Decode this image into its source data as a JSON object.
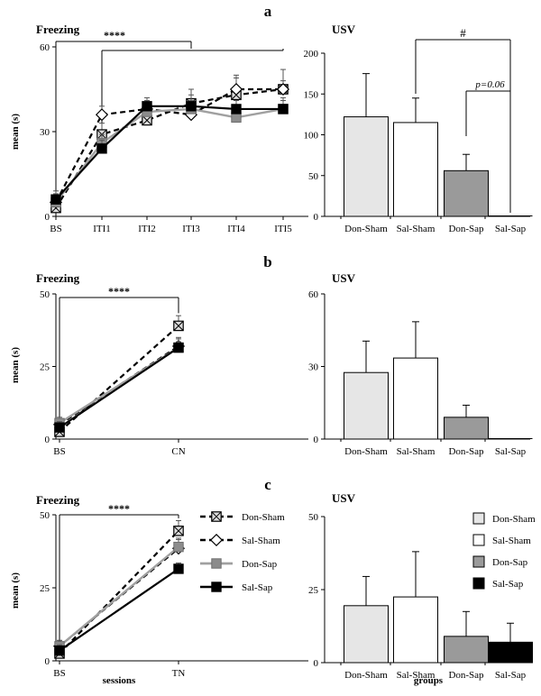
{
  "panels": [
    {
      "letter": "a",
      "freezing": {
        "type": "line",
        "title": "Freezing",
        "ylabel": "mean (s)",
        "xlabel": "",
        "categories": [
          "BS",
          "ITI1",
          "ITI2",
          "ITI3",
          "ITI4",
          "ITI5"
        ],
        "ylim": [
          0,
          60
        ],
        "yticks": [
          0,
          30,
          60
        ],
        "series": [
          {
            "name": "Don-Sham",
            "values": [
              3,
              29,
              34,
              40,
              43,
              45
            ],
            "errors": [
              2,
              4,
              3,
              5,
              6,
              7
            ]
          },
          {
            "name": "Sal-Sham",
            "values": [
              5,
              36,
              38,
              36,
              45,
              45
            ],
            "errors": [
              3,
              3,
              3,
              4,
              5,
              3
            ]
          },
          {
            "name": "Don-Sap",
            "values": [
              5,
              26,
              37,
              38,
              35,
              38
            ],
            "errors": [
              2,
              3,
              3,
              3,
              3,
              3
            ]
          },
          {
            "name": "Sal-Sap",
            "values": [
              6,
              24,
              39,
              39,
              38,
              38
            ],
            "errors": [
              3,
              3,
              3,
              4,
              3,
              4
            ]
          }
        ],
        "annotations": [
          {
            "text": "****",
            "from": "BS",
            "to": "ITI3",
            "y": 62
          },
          {
            "text": "",
            "from": "ITI1",
            "to": "ITI5",
            "y": 56
          }
        ]
      },
      "usv": {
        "type": "bar",
        "title": "USV",
        "xlabel": "",
        "categories": [
          "Don-Sham",
          "Sal-Sham",
          "Don-Sap",
          "Sal-Sap"
        ],
        "values": [
          122,
          115,
          56,
          0
        ],
        "errors": [
          53,
          30,
          20,
          0
        ],
        "ylim": [
          0,
          200
        ],
        "yticks": [
          0,
          50,
          100,
          150,
          200
        ],
        "annotations": [
          {
            "text": "#",
            "from": "Sal-Sham",
            "to": "Sal-Sap",
            "y": 210
          },
          {
            "text": "p=0.06",
            "from": "Don-Sap",
            "to": "Sal-Sap",
            "y": 150
          }
        ]
      }
    },
    {
      "letter": "b",
      "freezing": {
        "type": "line",
        "title": "Freezing",
        "ylabel": "mean (s)",
        "xlabel": "",
        "categories": [
          "BS",
          "CN"
        ],
        "ylim": [
          0,
          50
        ],
        "yticks": [
          0,
          25,
          50
        ],
        "series": [
          {
            "name": "Don-Sham",
            "values": [
              2.5,
              39
            ],
            "errors": [
              2,
              3.5
            ]
          },
          {
            "name": "Sal-Sham",
            "values": [
              5,
              32
            ],
            "errors": [
              2,
              3
            ]
          },
          {
            "name": "Don-Sap",
            "values": [
              5.5,
              31.5
            ],
            "errors": [
              2,
              3
            ]
          },
          {
            "name": "Sal-Sap",
            "values": [
              4,
              31.5
            ],
            "errors": [
              2,
              2
            ]
          }
        ],
        "annotations": [
          {
            "text": "****",
            "from": "BS",
            "to": "CN",
            "y": 46
          }
        ]
      },
      "usv": {
        "type": "bar",
        "title": "USV",
        "xlabel": "",
        "categories": [
          "Don-Sham",
          "Sal-Sham",
          "Don-Sap",
          "Sal-Sap"
        ],
        "values": [
          27.5,
          33.5,
          9,
          0
        ],
        "errors": [
          13,
          15,
          5,
          0
        ],
        "ylim": [
          0,
          60
        ],
        "yticks": [
          0,
          30,
          60
        ],
        "annotations": []
      }
    },
    {
      "letter": "c",
      "freezing": {
        "type": "line",
        "title": "Freezing",
        "ylabel": "mean (s)",
        "xlabel": "sessions",
        "categories": [
          "BS",
          "TN"
        ],
        "ylim": [
          0,
          50
        ],
        "yticks": [
          0,
          25,
          50
        ],
        "series": [
          {
            "name": "Don-Sham",
            "values": [
              2.5,
              44.5
            ],
            "errors": [
              2,
              3.5
            ]
          },
          {
            "name": "Sal-Sham",
            "values": [
              5,
              38.5
            ],
            "errors": [
              2,
              3
            ]
          },
          {
            "name": "Don-Sap",
            "values": [
              5,
              39
            ],
            "errors": [
              2,
              3
            ]
          },
          {
            "name": "Sal-Sap",
            "values": [
              3.5,
              31.5
            ],
            "errors": [
              2,
              2
            ]
          }
        ],
        "annotations": [
          {
            "text": "****",
            "from": "BS",
            "to": "TN",
            "y": 48
          }
        ],
        "legend": [
          "Don-Sham",
          "Sal-Sham",
          "Don-Sap",
          "Sal-Sap"
        ]
      },
      "usv": {
        "type": "bar",
        "title": "USV",
        "xlabel": "groups",
        "categories": [
          "Don-Sham",
          "Sal-Sham",
          "Don-Sap",
          "Sal-Sap"
        ],
        "values": [
          19.5,
          22.5,
          9,
          7
        ],
        "errors": [
          10,
          15.5,
          8.5,
          6.5
        ],
        "ylim": [
          0,
          50
        ],
        "yticks": [
          0,
          25,
          50
        ],
        "annotations": [],
        "legend": [
          "Don-Sham",
          "Sal-Sham",
          "Don-Sap",
          "Sal-Sap"
        ]
      }
    }
  ],
  "styles": {
    "Don-Sham": {
      "stroke": "#000000",
      "dash": "6,4",
      "marker": "boxx",
      "fill": "#dcdcdc",
      "barfill": "#e6e6e6",
      "width": 2.2
    },
    "Sal-Sham": {
      "stroke": "#000000",
      "dash": "6,4",
      "marker": "diamond",
      "fill": "#ffffff",
      "barfill": "#ffffff",
      "width": 2.2
    },
    "Don-Sap": {
      "stroke": "#a0a0a0",
      "dash": "",
      "marker": "square",
      "fill": "#8c8c8c",
      "barfill": "#9a9a9a",
      "width": 2.4
    },
    "Sal-Sap": {
      "stroke": "#000000",
      "dash": "",
      "marker": "fsquare",
      "fill": "#000000",
      "barfill": "#000000",
      "width": 2.2
    }
  },
  "chart_data": [
    {
      "type": "line",
      "panel": "a",
      "title": "Freezing",
      "ylabel": "mean (s)",
      "categories": [
        "BS",
        "ITI1",
        "ITI2",
        "ITI3",
        "ITI4",
        "ITI5"
      ],
      "ylim": [
        0,
        60
      ],
      "series": [
        {
          "name": "Don-Sham",
          "values": [
            3,
            29,
            34,
            40,
            43,
            45
          ]
        },
        {
          "name": "Sal-Sham",
          "values": [
            5,
            36,
            38,
            36,
            45,
            45
          ]
        },
        {
          "name": "Don-Sap",
          "values": [
            5,
            26,
            37,
            38,
            35,
            38
          ]
        },
        {
          "name": "Sal-Sap",
          "values": [
            6,
            24,
            39,
            39,
            38,
            38
          ]
        }
      ]
    },
    {
      "type": "bar",
      "panel": "a",
      "title": "USV",
      "categories": [
        "Don-Sham",
        "Sal-Sham",
        "Don-Sap",
        "Sal-Sap"
      ],
      "values": [
        122,
        115,
        56,
        0
      ],
      "ylim": [
        0,
        200
      ]
    },
    {
      "type": "line",
      "panel": "b",
      "title": "Freezing",
      "ylabel": "mean (s)",
      "categories": [
        "BS",
        "CN"
      ],
      "ylim": [
        0,
        50
      ],
      "series": [
        {
          "name": "Don-Sham",
          "values": [
            2.5,
            39
          ]
        },
        {
          "name": "Sal-Sham",
          "values": [
            5,
            32
          ]
        },
        {
          "name": "Don-Sap",
          "values": [
            5.5,
            31.5
          ]
        },
        {
          "name": "Sal-Sap",
          "values": [
            4,
            31.5
          ]
        }
      ]
    },
    {
      "type": "bar",
      "panel": "b",
      "title": "USV",
      "categories": [
        "Don-Sham",
        "Sal-Sham",
        "Don-Sap",
        "Sal-Sap"
      ],
      "values": [
        27.5,
        33.5,
        9,
        0
      ],
      "ylim": [
        0,
        60
      ]
    },
    {
      "type": "line",
      "panel": "c",
      "title": "Freezing",
      "ylabel": "mean (s)",
      "xlabel": "sessions",
      "categories": [
        "BS",
        "TN"
      ],
      "ylim": [
        0,
        50
      ],
      "series": [
        {
          "name": "Don-Sham",
          "values": [
            2.5,
            44.5
          ]
        },
        {
          "name": "Sal-Sham",
          "values": [
            5,
            38.5
          ]
        },
        {
          "name": "Don-Sap",
          "values": [
            5,
            39
          ]
        },
        {
          "name": "Sal-Sap",
          "values": [
            3.5,
            31.5
          ]
        }
      ]
    },
    {
      "type": "bar",
      "panel": "c",
      "title": "USV",
      "xlabel": "groups",
      "categories": [
        "Don-Sham",
        "Sal-Sham",
        "Don-Sap",
        "Sal-Sap"
      ],
      "values": [
        19.5,
        22.5,
        9,
        7
      ],
      "ylim": [
        0,
        50
      ]
    }
  ]
}
